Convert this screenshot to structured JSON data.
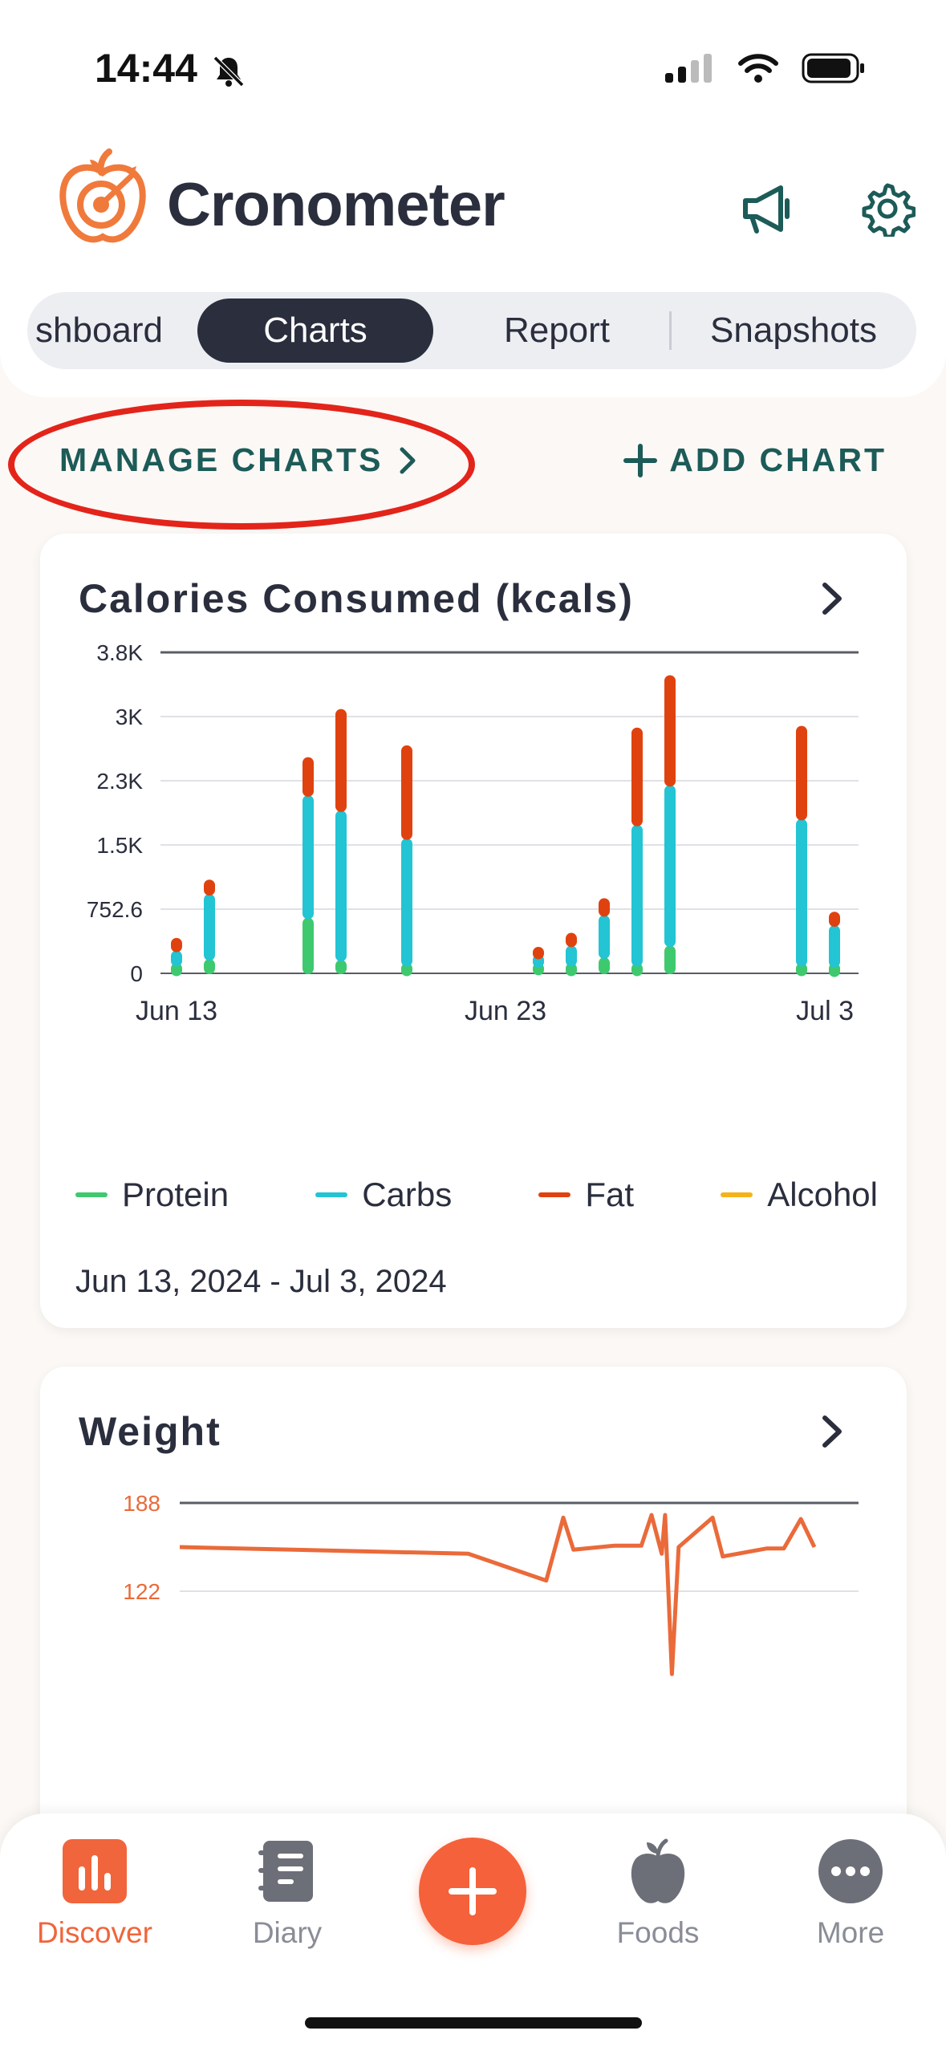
{
  "status": {
    "time": "14:44"
  },
  "app": {
    "title": "Cronometer"
  },
  "tabs": [
    {
      "label": "shboard"
    },
    {
      "label": "Charts"
    },
    {
      "label": "Report"
    },
    {
      "label": "Snapshots"
    }
  ],
  "actions": {
    "manage": "MANAGE CHARTS",
    "add": "ADD CHART"
  },
  "calories_card": {
    "title": "Calories Consumed (kcals)",
    "date_range": "Jun 13, 2024 - Jul 3, 2024",
    "legend": [
      "Protein",
      "Carbs",
      "Fat",
      "Alcohol"
    ]
  },
  "weight_card": {
    "title": "Weight"
  },
  "chart_data": [
    {
      "type": "bar",
      "title": "Calories Consumed (kcals)",
      "stacked": true,
      "x": [
        "Jun 13",
        "Jun 14",
        "Jun 15",
        "Jun 16",
        "Jun 17",
        "Jun 18",
        "Jun 19",
        "Jun 20",
        "Jun 21",
        "Jun 22",
        "Jun 23",
        "Jun 24",
        "Jun 25",
        "Jun 26",
        "Jun 27",
        "Jun 28",
        "Jun 29",
        "Jun 30",
        "Jul 1",
        "Jul 2",
        "Jul 3"
      ],
      "xticks": [
        "Jun 13",
        "Jun 23",
        "Jul 3"
      ],
      "yticks": [
        "0",
        "752.6",
        "1.5K",
        "2.3K",
        "3K",
        "3.8K"
      ],
      "ylim": [
        0,
        3800
      ],
      "series": [
        {
          "name": "Protein",
          "color": "#3ec96e",
          "values": [
            90,
            160,
            0,
            0,
            650,
            150,
            0,
            90,
            0,
            0,
            0,
            100,
            90,
            180,
            90,
            320,
            0,
            0,
            0,
            90,
            80
          ]
        },
        {
          "name": "Carbs",
          "color": "#23c4d3",
          "values": [
            170,
            770,
            0,
            0,
            1450,
            1770,
            0,
            1500,
            0,
            0,
            0,
            90,
            230,
            500,
            1660,
            1900,
            0,
            0,
            0,
            1730,
            480
          ]
        },
        {
          "name": "Fat",
          "color": "#e0420f",
          "values": [
            150,
            170,
            0,
            0,
            450,
            1200,
            0,
            1100,
            0,
            0,
            0,
            100,
            150,
            200,
            1150,
            1300,
            0,
            0,
            0,
            1100,
            160
          ]
        },
        {
          "name": "Alcohol",
          "color": "#f5b21a",
          "values": [
            0,
            0,
            0,
            0,
            0,
            0,
            0,
            0,
            0,
            0,
            0,
            0,
            0,
            0,
            0,
            0,
            0,
            0,
            0,
            0,
            0
          ]
        }
      ],
      "legend_position": "bottom",
      "grid": true
    },
    {
      "type": "line",
      "title": "Weight",
      "yticks": [
        "122",
        "188"
      ],
      "ylim": [
        56,
        188
      ],
      "color": "#ea6a3a",
      "points": [
        [
          0,
          155
        ],
        [
          8.5,
          150
        ],
        [
          10.8,
          130
        ],
        [
          11.3,
          177
        ],
        [
          11.6,
          153
        ],
        [
          12.8,
          156
        ],
        [
          13.6,
          156
        ],
        [
          13.9,
          179
        ],
        [
          14.2,
          150
        ],
        [
          14.3,
          179
        ],
        [
          14.5,
          60
        ],
        [
          14.7,
          155
        ],
        [
          15.7,
          177
        ],
        [
          16.0,
          148
        ],
        [
          17.3,
          154
        ],
        [
          17.8,
          154
        ],
        [
          18.3,
          176
        ],
        [
          18.7,
          155
        ]
      ],
      "x_range": [
        0,
        20
      ]
    }
  ]
}
